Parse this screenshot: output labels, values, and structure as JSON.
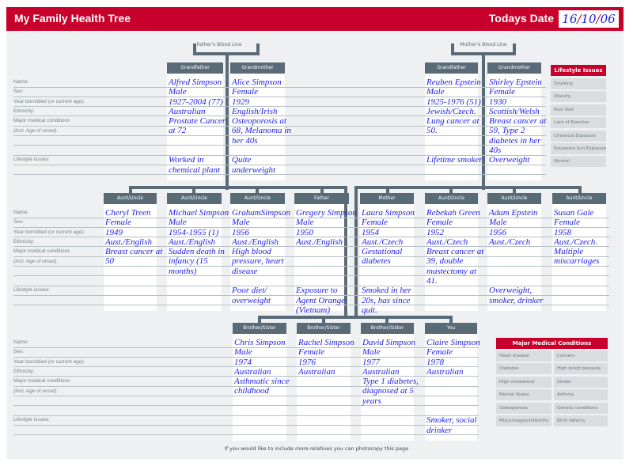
{
  "header": {
    "title": "My Family Health Tree",
    "date_label": "Todays Date",
    "date": {
      "day": "16",
      "month": "10",
      "year": "06"
    }
  },
  "blood_lines": {
    "father": "Father's Blood Line",
    "mother": "Mother's Blood Line"
  },
  "row_labels": [
    "Name:",
    "Sex:",
    "Year born/died (or current age):",
    "Ethnicity:",
    "Major medical conditions",
    "(Incl. Age of onset):",
    "",
    "",
    "Lifestyle issues:",
    ""
  ],
  "generations": [
    {
      "members": [
        {
          "role": "Grandfather",
          "name": "Alfred Simpson",
          "sex": "Male",
          "year": "1927-2004 (77)",
          "ethnicity": "Australian",
          "conditions": "Prostate Cancer at 72",
          "lifestyle": "Worked in chemical plant"
        },
        {
          "role": "Grandmother",
          "name": "Alice Simpson",
          "sex": "Female",
          "year": "1929",
          "ethnicity": "English/Irish",
          "conditions": "Osteoporosis at 68, Melanoma in her 40s",
          "lifestyle": "Quite underweight"
        },
        {
          "role": "Grandfather",
          "name": "Reuben Epstein",
          "sex": "Male",
          "year": "1925-1976 (51)",
          "ethnicity": "Jewish/Czech.",
          "conditions": "Lung cancer at 50.",
          "lifestyle": "Lifetime smoker"
        },
        {
          "role": "Grandmother",
          "name": "Shirley Epstein",
          "sex": "Female",
          "year": "1930",
          "ethnicity": "Scottish/Welsh",
          "conditions": "Breast cancer at 59, Type 2 diabetes in her 40s",
          "lifestyle": "Overweight"
        }
      ]
    },
    {
      "members": [
        {
          "role": "Aunt/Uncle",
          "name": "Cheryl Treen",
          "sex": "Female",
          "year": "1949",
          "ethnicity": "Aust./English",
          "conditions": "Breast cancer at 50",
          "lifestyle": ""
        },
        {
          "role": "Aunt/Uncle",
          "name": "Michael Simpson",
          "sex": "Male",
          "year": "1954-1955 (1)",
          "ethnicity": "Aust./English",
          "conditions": "Sudden death in infancy (15 months)",
          "lifestyle": ""
        },
        {
          "role": "Aunt/Uncle",
          "name": "GrahamSimpson",
          "sex": "Male",
          "year": "1956",
          "ethnicity": "Aust./English",
          "conditions": "High blood pressure, heart disease",
          "lifestyle": "Poor diet/ overweight"
        },
        {
          "role": "Father",
          "name": "Gregory Simpson",
          "sex": "Male",
          "year": "1950",
          "ethnicity": "Aust./English",
          "conditions": "",
          "lifestyle": "Exposure to Agent Orange (Vietnam)"
        },
        {
          "role": "Mother",
          "name": "Laura Simpson",
          "sex": "Female",
          "year": "1954",
          "ethnicity": "Aust./Czech",
          "conditions": "Gestational diabetes",
          "lifestyle": "Smoked in her 20s, has since quit."
        },
        {
          "role": "Aunt/Uncle",
          "name": "Rebekah Green",
          "sex": "Female",
          "year": "1952",
          "ethnicity": "Aust./Czech",
          "conditions": "Breast cancer at 39, double mastectomy at 41.",
          "lifestyle": ""
        },
        {
          "role": "Aunt/Uncle",
          "name": "Adam Epstein",
          "sex": "Male",
          "year": "1956",
          "ethnicity": "Aust./Czech",
          "conditions": "",
          "lifestyle": "Overweight, smoker, drinker"
        },
        {
          "role": "Aunt/Uncle",
          "name": "Susan Gale",
          "sex": "Female",
          "year": "1958",
          "ethnicity": "Aust./Czech.",
          "conditions": "Multiple miscarriages",
          "lifestyle": ""
        }
      ]
    },
    {
      "members": [
        {
          "role": "Brother/Sister",
          "name": "Chris Simpson",
          "sex": "Male",
          "year": "1974",
          "ethnicity": "Australian",
          "conditions": "Asthmatic since childhood",
          "lifestyle": ""
        },
        {
          "role": "Brother/Sister",
          "name": "Rachel Simpson",
          "sex": "Female",
          "year": "1976",
          "ethnicity": "Australian",
          "conditions": "",
          "lifestyle": ""
        },
        {
          "role": "Brother/Sister",
          "name": "David Simpson",
          "sex": "Male",
          "year": "1977",
          "ethnicity": "Australian",
          "conditions": "Type 1 diabetes, diagnosed at 5 years",
          "lifestyle": ""
        },
        {
          "role": "You",
          "name": "Claire Simpson",
          "sex": "Female",
          "year": "1978",
          "ethnicity": "Australian",
          "conditions": "",
          "lifestyle": "Smoker, social drinker"
        }
      ]
    }
  ],
  "lifestyle_panel": {
    "title": "Lifestyle Issues",
    "items": [
      "Smoking",
      "Obesity",
      "Poor Diet",
      "Lack of Exercise",
      "Chemical Exposure",
      "Excessive Sun Exposure",
      "Alcohol"
    ]
  },
  "conditions_panel": {
    "title": "Major Medical Conditions",
    "items": [
      "Heart disease",
      "Cancers",
      "Diabetes",
      "High blood pressure",
      "High cholesterol",
      "Stroke",
      "Mental illness",
      "Asthma",
      "Osteoporosis",
      "Genetic conditions",
      "Miscarriages/stillbirths",
      "Birth defects"
    ]
  },
  "footer": "If you would like to include more relatives you can photocopy this page",
  "colors": {
    "brand_red": "#c8002c",
    "slate": "#5a6b78",
    "handwriting": "#2020e8",
    "background": "#eef0f1"
  }
}
